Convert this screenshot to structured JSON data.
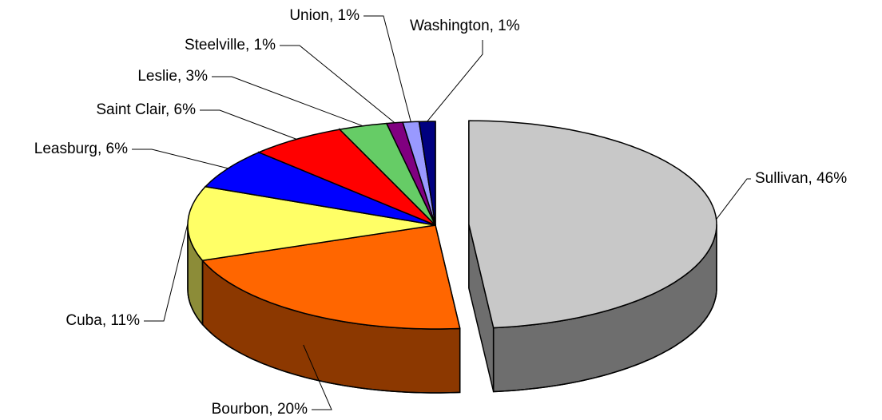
{
  "chart_data": {
    "type": "pie",
    "values": [
      46,
      20,
      11,
      6,
      6,
      3,
      1,
      1,
      1
    ],
    "value_labels": [
      "Sullivan, 46%",
      "Bourbon, 20%",
      "Cuba, 11%",
      "Leasburg, 6%",
      "Saint Clair, 6%",
      "Leslie, 3%",
      "Steelville, 1%",
      "Union, 1%",
      "Washington, 1%"
    ],
    "colors": [
      "#c8c8c8",
      "#ff6600",
      "#ffff66",
      "#0000ff",
      "#ff0000",
      "#66cc66",
      "#800080",
      "#9999ff",
      "#000080"
    ]
  }
}
